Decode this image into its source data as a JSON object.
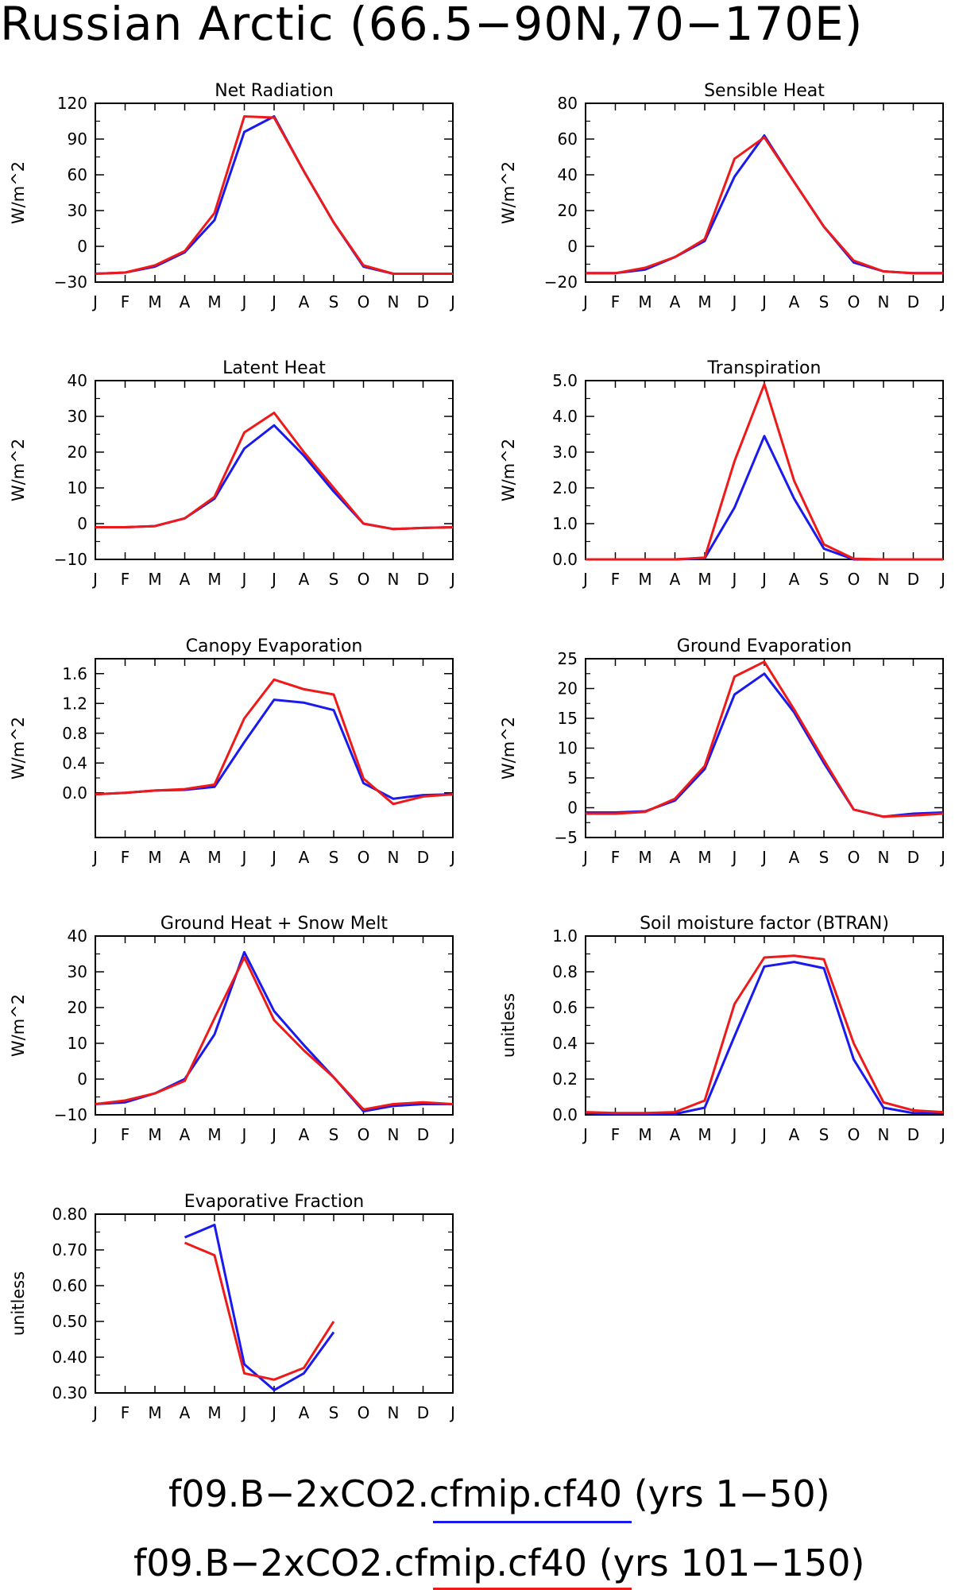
{
  "title": "Russian Arctic (66.5−90N,70−170E)",
  "months": [
    "J",
    "F",
    "M",
    "A",
    "M",
    "J",
    "J",
    "A",
    "S",
    "O",
    "N",
    "D",
    "J"
  ],
  "colors": {
    "blue": "#1a1aee",
    "red": "#ee1a1a"
  },
  "legend": [
    {
      "label": "f09.B−2xCO2.cfmip.cf40 (yrs 1−50)",
      "color": "#1a1aee"
    },
    {
      "label": "f09.B−2xCO2.cfmip.cf40 (yrs 101−150)",
      "color": "#ee1a1a"
    }
  ],
  "chart_data": [
    {
      "type": "line",
      "title": "Net Radiation",
      "ylabel": "W/m^2",
      "ylim": [
        -30,
        120
      ],
      "yticks": [
        -30,
        0,
        30,
        60,
        90,
        120
      ],
      "ytick_labels": [
        "−30",
        "0",
        "30",
        "60",
        "90",
        "120"
      ],
      "series": [
        {
          "color": "blue",
          "values": [
            -23,
            -22,
            -17,
            -5,
            22,
            96,
            109,
            63,
            20,
            -17,
            -23,
            -23,
            -23
          ]
        },
        {
          "color": "red",
          "values": [
            -23,
            -22,
            -16,
            -4,
            28,
            109,
            108,
            63,
            20,
            -16,
            -23,
            -23,
            -23
          ]
        }
      ]
    },
    {
      "type": "line",
      "title": "Sensible Heat",
      "ylabel": "W/m^2",
      "ylim": [
        -20,
        80
      ],
      "yticks": [
        -20,
        0,
        20,
        40,
        60,
        80
      ],
      "ytick_labels": [
        "−20",
        "0",
        "20",
        "40",
        "60",
        "80"
      ],
      "series": [
        {
          "color": "blue",
          "values": [
            -15,
            -15,
            -13,
            -6,
            3,
            39,
            62,
            36,
            11,
            -9,
            -14,
            -15,
            -15
          ]
        },
        {
          "color": "red",
          "values": [
            -15,
            -15,
            -12,
            -6,
            4,
            49,
            61,
            36,
            11,
            -8,
            -14,
            -15,
            -15
          ]
        }
      ]
    },
    {
      "type": "line",
      "title": "Latent Heat",
      "ylabel": "W/m^2",
      "ylim": [
        -10,
        40
      ],
      "yticks": [
        -10,
        0,
        10,
        20,
        30,
        40
      ],
      "ytick_labels": [
        "−10",
        "0",
        "10",
        "20",
        "30",
        "40"
      ],
      "series": [
        {
          "color": "blue",
          "values": [
            -1,
            -1,
            -0.7,
            1.5,
            7,
            21,
            27.5,
            19,
            9,
            0,
            -1.5,
            -1.2,
            -1
          ]
        },
        {
          "color": "red",
          "values": [
            -1,
            -1,
            -0.7,
            1.5,
            7.5,
            25.5,
            31,
            20,
            10,
            0,
            -1.5,
            -1.2,
            -1
          ]
        }
      ]
    },
    {
      "type": "line",
      "title": "Transpiration",
      "ylabel": "W/m^2",
      "ylim": [
        0,
        5
      ],
      "yticks": [
        0,
        1,
        2,
        3,
        4,
        5
      ],
      "ytick_labels": [
        "0.0",
        "1.0",
        "2.0",
        "3.0",
        "4.0",
        "5.0"
      ],
      "series": [
        {
          "color": "blue",
          "values": [
            0,
            0,
            0,
            0,
            0.03,
            1.45,
            3.45,
            1.7,
            0.3,
            0,
            0,
            0,
            0
          ]
        },
        {
          "color": "red",
          "values": [
            0,
            0,
            0,
            0,
            0.05,
            2.75,
            4.9,
            2.2,
            0.42,
            0.02,
            0,
            0,
            0
          ]
        }
      ]
    },
    {
      "type": "line",
      "title": "Canopy Evaporation",
      "ylabel": "W/m^2",
      "ylim": [
        -0.6,
        1.8
      ],
      "yticks": [
        0,
        0.4,
        0.8,
        1.2,
        1.6
      ],
      "ytick_labels": [
        "0.0",
        "0.4",
        "0.8",
        "1.2",
        "1.6"
      ],
      "series": [
        {
          "color": "blue",
          "values": [
            -0.02,
            0,
            0.03,
            0.04,
            0.08,
            0.68,
            1.25,
            1.21,
            1.11,
            0.13,
            -0.08,
            -0.03,
            -0.02
          ]
        },
        {
          "color": "red",
          "values": [
            -0.02,
            0,
            0.03,
            0.05,
            0.11,
            1.0,
            1.52,
            1.39,
            1.32,
            0.19,
            -0.15,
            -0.05,
            -0.02
          ]
        }
      ]
    },
    {
      "type": "line",
      "title": "Ground Evaporation",
      "ylabel": "W/m^2",
      "ylim": [
        -5,
        25
      ],
      "yticks": [
        -5,
        0,
        5,
        10,
        15,
        20,
        25
      ],
      "ytick_labels": [
        "−5",
        "0",
        "5",
        "10",
        "15",
        "20",
        "25"
      ],
      "series": [
        {
          "color": "blue",
          "values": [
            -0.8,
            -0.8,
            -0.6,
            1.2,
            6.5,
            19,
            22.5,
            16,
            7.5,
            -0.3,
            -1.5,
            -1,
            -0.8
          ]
        },
        {
          "color": "red",
          "values": [
            -1,
            -1,
            -0.7,
            1.5,
            7,
            22,
            24.5,
            16.5,
            8,
            -0.3,
            -1.5,
            -1.3,
            -1
          ]
        }
      ]
    },
    {
      "type": "line",
      "title": "Ground Heat + Snow Melt",
      "ylabel": "W/m^2",
      "ylim": [
        -10,
        40
      ],
      "yticks": [
        -10,
        0,
        10,
        20,
        30,
        40
      ],
      "ytick_labels": [
        "−10",
        "0",
        "10",
        "20",
        "30",
        "40"
      ],
      "series": [
        {
          "color": "blue",
          "values": [
            -7,
            -6.5,
            -4,
            0,
            12.5,
            35.5,
            19,
            9.5,
            0.5,
            -9,
            -7.5,
            -7,
            -7
          ]
        },
        {
          "color": "red",
          "values": [
            -7,
            -6,
            -4,
            -0.5,
            17,
            34,
            16.5,
            8,
            0.5,
            -8.5,
            -7,
            -6.5,
            -7
          ]
        }
      ]
    },
    {
      "type": "line",
      "title": "Soil moisture factor (BTRAN)",
      "ylabel": "unitless",
      "ylim": [
        0,
        1
      ],
      "yticks": [
        0,
        0.2,
        0.4,
        0.6,
        0.8,
        1.0
      ],
      "ytick_labels": [
        "0.0",
        "0.2",
        "0.4",
        "0.6",
        "0.8",
        "1.0"
      ],
      "series": [
        {
          "color": "blue",
          "values": [
            0.01,
            0.005,
            0.005,
            0.005,
            0.04,
            0.44,
            0.83,
            0.855,
            0.82,
            0.31,
            0.04,
            0.01,
            0.01
          ]
        },
        {
          "color": "red",
          "values": [
            0.015,
            0.01,
            0.01,
            0.015,
            0.08,
            0.62,
            0.88,
            0.89,
            0.87,
            0.4,
            0.07,
            0.025,
            0.015
          ]
        }
      ]
    },
    {
      "type": "line",
      "title": "Evaporative Fraction",
      "ylabel": "unitless",
      "ylim": [
        0.3,
        0.8
      ],
      "yticks": [
        0.3,
        0.4,
        0.5,
        0.6,
        0.7,
        0.8
      ],
      "ytick_labels": [
        "0.30",
        "0.40",
        "0.50",
        "0.60",
        "0.70",
        "0.80"
      ],
      "series": [
        {
          "color": "blue",
          "values": [
            null,
            null,
            null,
            0.735,
            0.77,
            0.38,
            0.308,
            0.355,
            0.47,
            null,
            null,
            null,
            null
          ]
        },
        {
          "color": "red",
          "values": [
            null,
            null,
            null,
            0.72,
            0.685,
            0.355,
            0.337,
            0.37,
            0.5,
            null,
            null,
            null,
            null
          ]
        }
      ]
    }
  ]
}
